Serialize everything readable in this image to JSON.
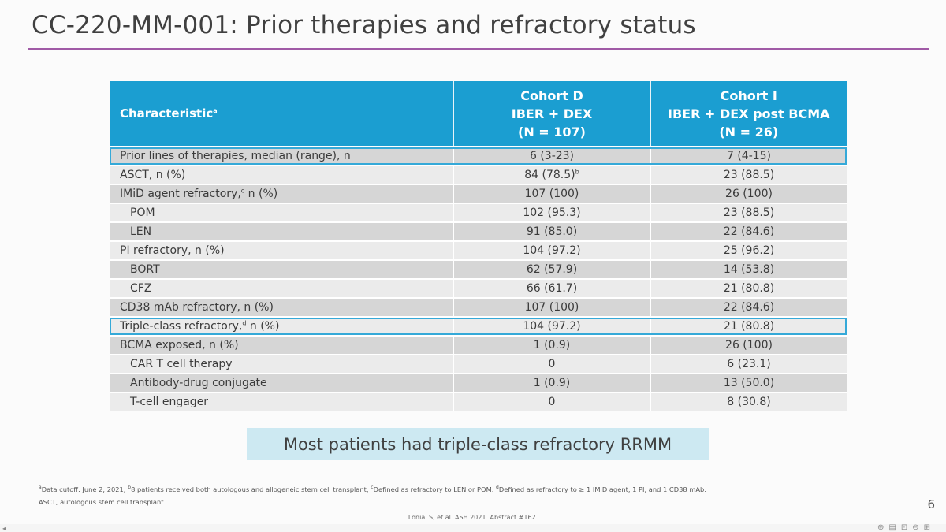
{
  "title": "CC-220-MM-001: Prior therapies and refractory status",
  "table": {
    "header": {
      "characteristic": "Characteristic",
      "characteristic_sup": "a",
      "cohort_d": [
        "Cohort D",
        "IBER + DEX",
        "(N = 107)"
      ],
      "cohort_i": [
        "Cohort I",
        "IBER + DEX post BCMA",
        "(N = 26)"
      ]
    },
    "rows": [
      {
        "label": "Prior lines of therapies, median (range), n",
        "sup": "",
        "label_after": "",
        "d": "6 (3-23)",
        "d_sup": "",
        "i": "7 (4-15)"
      },
      {
        "label": "ASCT, n (%)",
        "sup": "",
        "label_after": "",
        "d": "84 (78.5)",
        "d_sup": "b",
        "i": "23 (88.5)"
      },
      {
        "label": "IMiD agent refractory,",
        "sup": "c",
        "label_after": " n (%)",
        "d": "107 (100)",
        "d_sup": "",
        "i": "26 (100)"
      },
      {
        "label": "POM",
        "sup": "",
        "label_after": "",
        "d": "102 (95.3)",
        "d_sup": "",
        "i": "23 (88.5)"
      },
      {
        "label": "LEN",
        "sup": "",
        "label_after": "",
        "d": "91 (85.0)",
        "d_sup": "",
        "i": "22 (84.6)"
      },
      {
        "label": "PI refractory, n (%)",
        "sup": "",
        "label_after": "",
        "d": "104 (97.2)",
        "d_sup": "",
        "i": "25 (96.2)"
      },
      {
        "label": "BORT",
        "sup": "",
        "label_after": "",
        "d": "62 (57.9)",
        "d_sup": "",
        "i": "14 (53.8)"
      },
      {
        "label": "CFZ",
        "sup": "",
        "label_after": "",
        "d": "66 (61.7)",
        "d_sup": "",
        "i": "21 (80.8)"
      },
      {
        "label": "CD38 mAb refractory, n (%)",
        "sup": "",
        "label_after": "",
        "d": "107 (100)",
        "d_sup": "",
        "i": "22 (84.6)"
      },
      {
        "label": "Triple-class refractory,",
        "sup": "d",
        "label_after": " n (%)",
        "d": "104 (97.2)",
        "d_sup": "",
        "i": "21 (80.8)"
      },
      {
        "label": "BCMA exposed, n (%)",
        "sup": "",
        "label_after": "",
        "d": "1 (0.9)",
        "d_sup": "",
        "i": "26 (100)"
      },
      {
        "label": "CAR T cell therapy",
        "sup": "",
        "label_after": "",
        "d": "0",
        "d_sup": "",
        "i": "6 (23.1)"
      },
      {
        "label": "Antibody-drug conjugate",
        "sup": "",
        "label_after": "",
        "d": "1 (0.9)",
        "d_sup": "",
        "i": "13 (50.0)"
      },
      {
        "label": "T-cell engager",
        "sup": "",
        "label_after": "",
        "d": "0",
        "d_sup": "",
        "i": "8 (30.8)"
      }
    ]
  },
  "callout": "Most patients had triple-class refractory RRMM",
  "footnote": {
    "a_sup": "a",
    "a": "Data cutoff: June 2, 2021; ",
    "b_sup": "b",
    "b": "8 patients received both autologous and allogeneic stem cell transplant; ",
    "c_sup": "c",
    "c": "Defined as refractory to LEN or POM. ",
    "d_sup": "d",
    "d": "Defined as refractory to ≥ 1 IMiD agent, 1 PI, and 1 CD38 mAb.",
    "line2": "ASCT, autologous stem cell transplant."
  },
  "citation": "Lonial S, et al. ASH 2021. Abstract #162.",
  "page_number": "6",
  "colors": {
    "title_rule": "#a05aa6",
    "header_bg": "#1b9ed1",
    "highlight_border": "#35a9d8",
    "callout_bg": "#cde9f2"
  },
  "view_icons": [
    "normal-view-icon",
    "reading-view-icon",
    "slideshow-icon",
    "zoom-out-icon",
    "zoom-in-icon"
  ],
  "status_left": "◂"
}
